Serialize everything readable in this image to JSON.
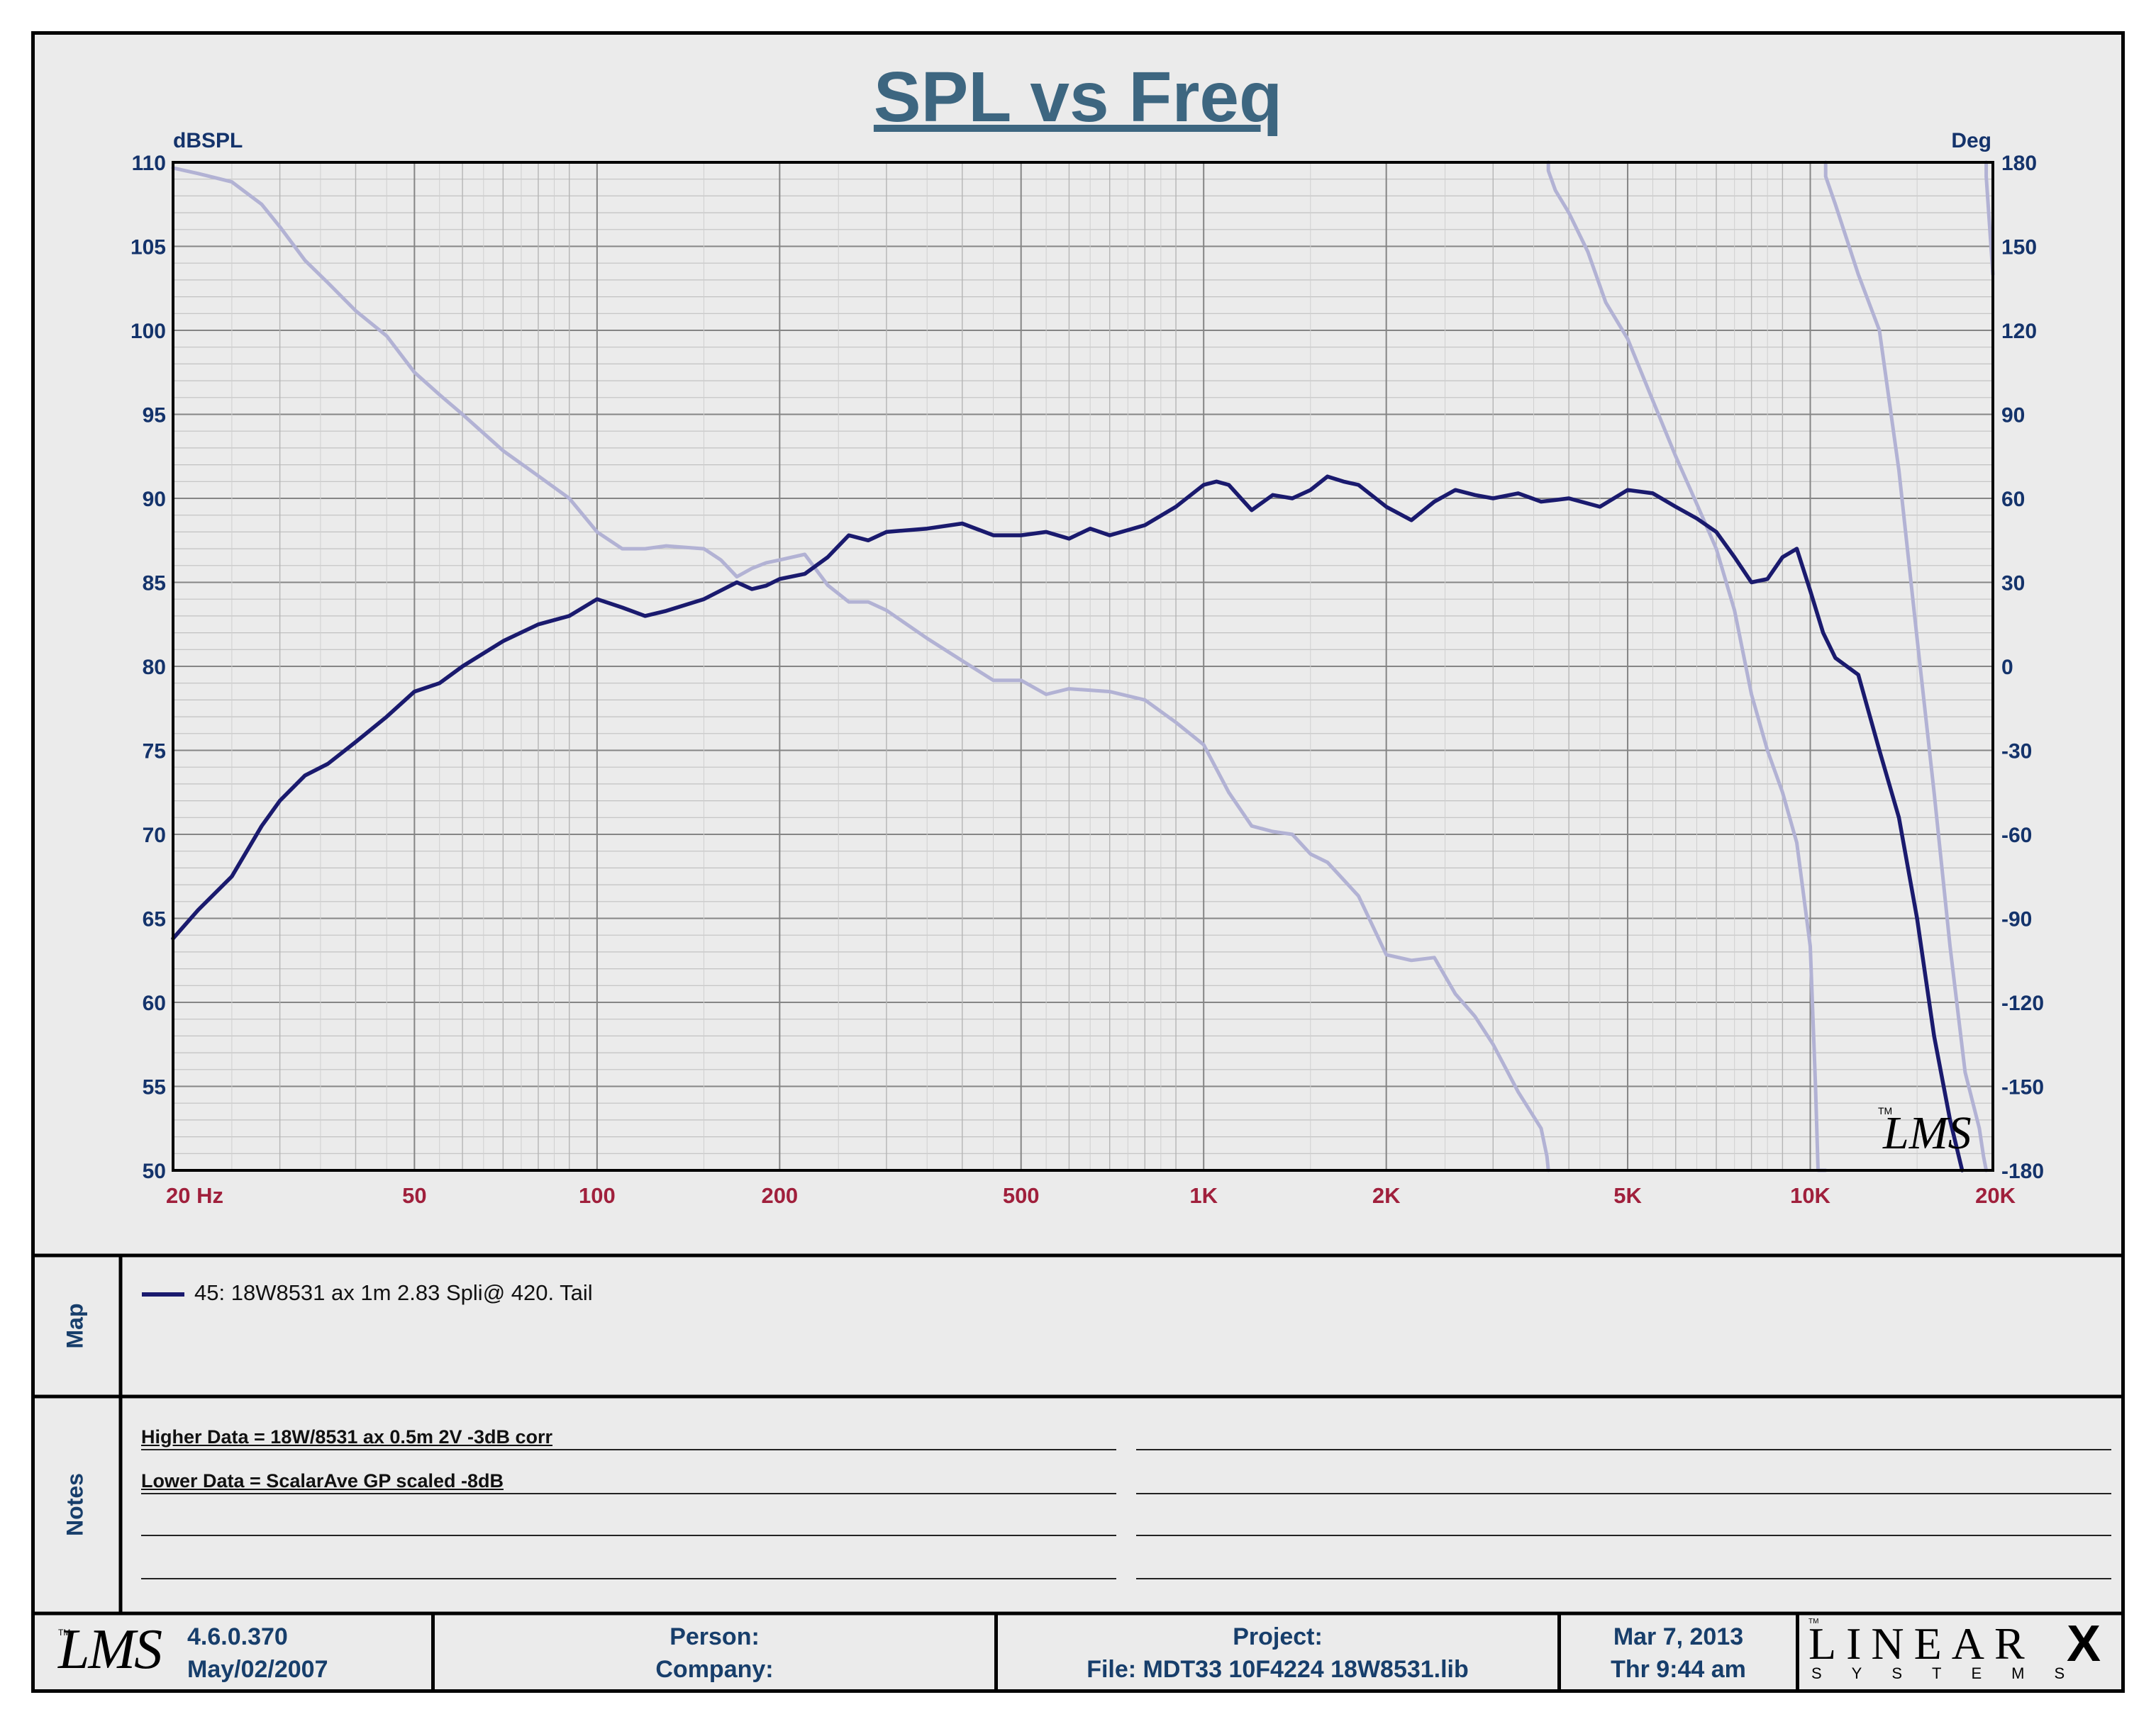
{
  "title": "SPL vs Freq",
  "chart_data": {
    "type": "line",
    "title": "SPL vs Freq",
    "xscale": "log",
    "xlim": [
      20,
      20000
    ],
    "x_tick_labels": [
      "20  Hz",
      "50",
      "100",
      "200",
      "500",
      "1K",
      "2K",
      "5K",
      "10K",
      "20K"
    ],
    "x_tick_values": [
      20,
      50,
      100,
      200,
      500,
      1000,
      2000,
      5000,
      10000,
      20000
    ],
    "ylabel_left": "dBSPL",
    "ylim_left": [
      50,
      110
    ],
    "y_ticks_left": [
      110,
      105,
      100,
      95,
      90,
      85,
      80,
      75,
      70,
      65,
      60,
      55,
      50
    ],
    "ylabel_right": "Deg",
    "ylim_right": [
      -180,
      180
    ],
    "y_ticks_right": [
      180,
      150,
      120,
      90,
      60,
      30,
      0,
      -30,
      -60,
      -90,
      -120,
      -150,
      -180
    ],
    "grid": true,
    "series": [
      {
        "name": "45: 18W8531 ax 1m 2.83 Spli@ 420. Tail",
        "axis": "left",
        "color": "#1a1a6e",
        "x": [
          20,
          22,
          25,
          28,
          30,
          33,
          36,
          40,
          45,
          50,
          55,
          60,
          70,
          80,
          90,
          100,
          110,
          120,
          130,
          150,
          170,
          180,
          190,
          200,
          220,
          240,
          260,
          280,
          300,
          350,
          400,
          450,
          500,
          550,
          600,
          650,
          700,
          800,
          900,
          1000,
          1050,
          1100,
          1200,
          1300,
          1400,
          1500,
          1600,
          1700,
          1800,
          2000,
          2200,
          2400,
          2600,
          2800,
          3000,
          3300,
          3600,
          3800,
          4000,
          4500,
          5000,
          5500,
          6000,
          6500,
          7000,
          7500,
          8000,
          8500,
          9000,
          9500,
          10000,
          10500,
          11000,
          12000,
          13000,
          14000,
          15000,
          16000,
          17000,
          17800
        ],
        "values": [
          63.8,
          65.5,
          67.5,
          70.5,
          72.0,
          73.5,
          74.2,
          75.5,
          77.0,
          78.5,
          79.0,
          80.0,
          81.5,
          82.5,
          83.0,
          84.0,
          83.5,
          83.0,
          83.3,
          84.0,
          85.0,
          84.6,
          84.8,
          85.2,
          85.5,
          86.5,
          87.8,
          87.5,
          88.0,
          88.2,
          88.5,
          87.8,
          87.8,
          88.0,
          87.6,
          88.2,
          87.8,
          88.4,
          89.5,
          90.8,
          91.0,
          90.8,
          89.3,
          90.2,
          90.0,
          90.5,
          91.3,
          91.0,
          90.8,
          89.5,
          88.7,
          89.8,
          90.5,
          90.2,
          90.0,
          90.3,
          89.8,
          89.9,
          90.0,
          89.5,
          90.5,
          90.3,
          89.5,
          88.8,
          88.0,
          86.5,
          85.0,
          85.2,
          86.5,
          87.0,
          84.5,
          82.0,
          80.5,
          79.5,
          75.0,
          71.0,
          65.0,
          58.0,
          53.0,
          50.0
        ]
      },
      {
        "name": "",
        "axis": "right",
        "color": "#b2b2d4",
        "x": [
          20,
          22,
          25,
          28,
          30,
          33,
          36,
          40,
          45,
          50,
          55,
          60,
          70,
          80,
          90,
          100,
          110,
          120,
          130,
          150,
          160,
          170,
          180,
          190,
          200,
          220,
          240,
          260,
          280,
          300,
          350,
          400,
          450,
          500,
          550,
          600,
          700,
          800,
          900,
          1000,
          1100,
          1200,
          1300,
          1400,
          1500,
          1600,
          1800,
          2000,
          2200,
          2400,
          2600,
          2800,
          3000,
          3300,
          3600,
          3680,
          3700,
          3800,
          4000,
          4300,
          4600,
          5000,
          5500,
          6000,
          6500,
          7000,
          7500,
          8000,
          8500,
          9000,
          9500,
          10000,
          10200,
          10300,
          10600,
          11000,
          12000,
          13000,
          14000,
          15000,
          16000,
          17000,
          18000,
          19000,
          19300,
          19500,
          20000
        ],
        "values": [
          178,
          176,
          173,
          165,
          157,
          145,
          137,
          127,
          118,
          105,
          97,
          90,
          77,
          68,
          60,
          48,
          42,
          42,
          43,
          42,
          38,
          32,
          35,
          37,
          38,
          40,
          29,
          23,
          23,
          20,
          10,
          2,
          -5,
          -5,
          -10,
          -8,
          -9,
          -12,
          -20,
          -28,
          -45,
          -57,
          -59,
          -60,
          -67,
          -70,
          -82,
          -103,
          -105,
          -104,
          -117,
          -125,
          -135,
          -152,
          -165,
          -175,
          177,
          170,
          162,
          148,
          130,
          117,
          95,
          75,
          58,
          42,
          20,
          -10,
          -30,
          -45,
          -63,
          -100,
          -150,
          -180,
          175,
          165,
          140,
          120,
          70,
          10,
          -45,
          -100,
          -145,
          -165,
          -175,
          175,
          140
        ]
      }
    ]
  },
  "legend": {
    "map_label": "Map",
    "entry": "45: 18W8531 ax 1m 2.83 Spli@ 420. Tail"
  },
  "notes": {
    "label": "Notes",
    "line1": "Higher Data = 18W/8531 ax 0.5m 2V -3dB corr",
    "line2": "Lower  Data = ScalarAve GP scaled -8dB"
  },
  "footer": {
    "lms_logo": "LMS",
    "version": "4.6.0.370",
    "version_date": "May/02/2007",
    "person_label": "Person:",
    "company_label": "Company:",
    "project_label": "Project:",
    "file_label": "File: MDT33 10F4224 18W8531.lib",
    "date": "Mar  7, 2013",
    "time": "Thr  9:44 am",
    "brand_name": "LINEAR",
    "brand_x": "X",
    "brand_tag": "SYSTEMS"
  },
  "watermark": "LMS"
}
